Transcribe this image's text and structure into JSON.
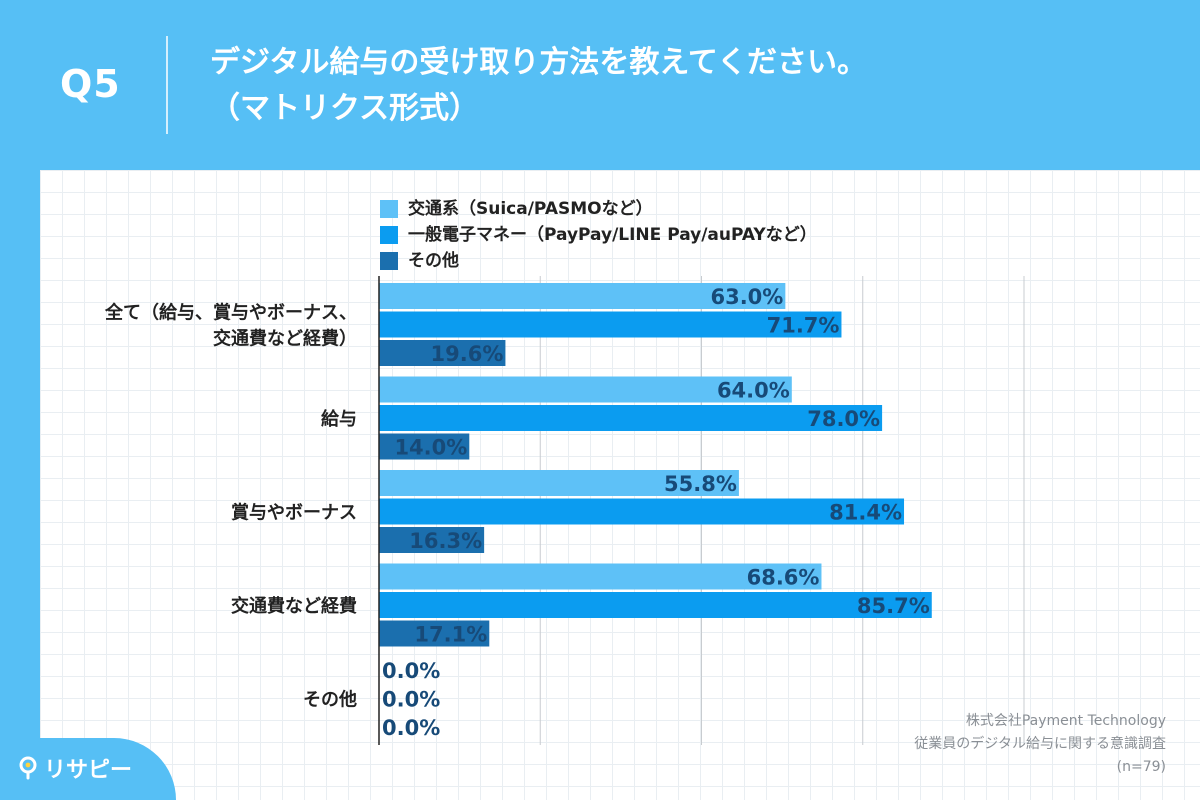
{
  "header": {
    "q_number": "Q5",
    "title_line1": "デジタル給与の受け取り方法を教えてください。",
    "title_line2": "（マトリクス形式）"
  },
  "credit": {
    "company": "株式会社Payment Technology",
    "survey": "従業員のデジタル給与に関する意識調査",
    "sample": "(n=79)"
  },
  "logo": {
    "text": "リサピー",
    "icon": "map-pin-icon"
  },
  "colors": {
    "header_bg": "#56bff5",
    "series1": "#5ec1f7",
    "series2": "#0b9cf0",
    "series3": "#1b6fae",
    "value_text": "#174a78"
  },
  "chart_data": {
    "type": "bar",
    "orientation": "horizontal",
    "categories": [
      [
        "全て（給与、賞与やボーナス、",
        "交通費など経費）"
      ],
      [
        "給与"
      ],
      [
        "賞与やボーナス"
      ],
      [
        "交通費など経費"
      ],
      [
        "その他"
      ]
    ],
    "series": [
      {
        "name": "交通系（Suica/PASMOなど）",
        "values": [
          63.0,
          64.0,
          55.8,
          68.6,
          0.0
        ],
        "color": "#5ec1f7"
      },
      {
        "name": "一般電子マネー（PayPay/LINE Pay/auPAYなど）",
        "values": [
          71.7,
          78.0,
          81.4,
          85.7,
          0.0
        ],
        "color": "#0b9cf0"
      },
      {
        "name": "その他",
        "values": [
          19.6,
          14.0,
          16.3,
          17.1,
          0.0
        ],
        "color": "#1b6fae"
      }
    ],
    "value_format": "%",
    "xlim": [
      0,
      100
    ],
    "grid": true,
    "legend_position": "top"
  }
}
